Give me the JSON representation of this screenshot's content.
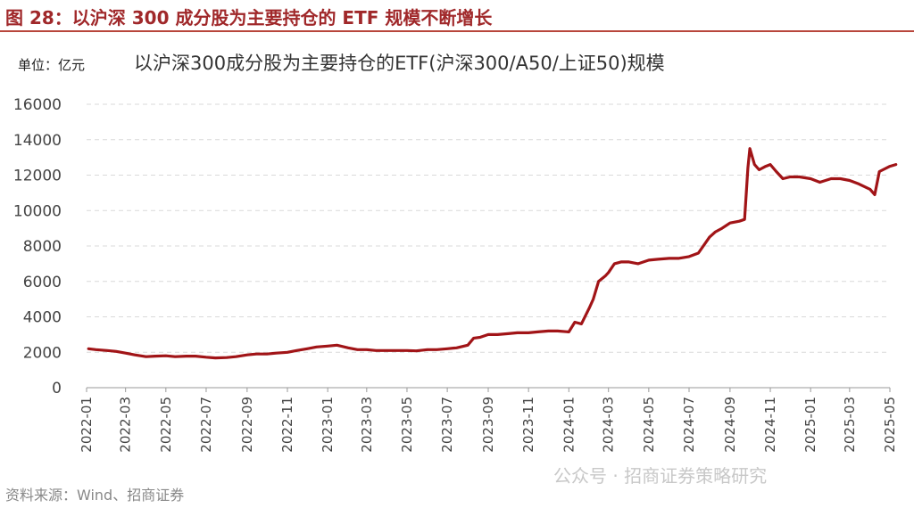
{
  "figure": {
    "title": "图 28：以沪深 300 成分股为主要持仓的 ETF 规模不断增长",
    "unit": "单位：亿元",
    "source": "资料来源：Wind、招商证券",
    "watermark": "公众号 · 招商证券策略研究"
  },
  "chart_data": {
    "type": "line",
    "title": "以沪深300成分股为主要持仓的ETF(沪深300/A50/上证50)规模",
    "xlabel": "",
    "ylabel": "",
    "ylim": [
      0,
      16000
    ],
    "yticks": [
      0,
      2000,
      4000,
      6000,
      8000,
      10000,
      12000,
      14000,
      16000
    ],
    "xticks": [
      "2022-01",
      "2022-03",
      "2022-05",
      "2022-07",
      "2022-09",
      "2022-11",
      "2023-01",
      "2023-03",
      "2023-05",
      "2023-07",
      "2023-09",
      "2023-11",
      "2024-01",
      "2024-03",
      "2024-05",
      "2024-07",
      "2024-09",
      "2024-11",
      "2025-01",
      "2025-03",
      "2025-05"
    ],
    "grid": true,
    "line_color": "#a11417",
    "series": [
      {
        "name": "",
        "x": [
          "2022-01-04",
          "2022-01-15",
          "2022-02-01",
          "2022-02-15",
          "2022-03-01",
          "2022-03-15",
          "2022-04-01",
          "2022-04-15",
          "2022-05-01",
          "2022-05-15",
          "2022-06-01",
          "2022-06-15",
          "2022-07-01",
          "2022-07-15",
          "2022-08-01",
          "2022-08-15",
          "2022-09-01",
          "2022-09-15",
          "2022-10-01",
          "2022-10-15",
          "2022-11-01",
          "2022-11-15",
          "2022-12-01",
          "2022-12-15",
          "2023-01-01",
          "2023-01-15",
          "2023-02-01",
          "2023-02-15",
          "2023-03-01",
          "2023-03-15",
          "2023-04-01",
          "2023-04-15",
          "2023-05-01",
          "2023-05-15",
          "2023-06-01",
          "2023-06-15",
          "2023-07-01",
          "2023-07-15",
          "2023-08-01",
          "2023-08-10",
          "2023-08-20",
          "2023-09-01",
          "2023-09-15",
          "2023-10-01",
          "2023-10-15",
          "2023-11-01",
          "2023-11-15",
          "2023-12-01",
          "2023-12-15",
          "2024-01-01",
          "2024-01-10",
          "2024-01-20",
          "2024-02-01",
          "2024-02-07",
          "2024-02-15",
          "2024-02-25",
          "2024-03-01",
          "2024-03-10",
          "2024-03-20",
          "2024-04-01",
          "2024-04-15",
          "2024-05-01",
          "2024-05-15",
          "2024-06-01",
          "2024-06-15",
          "2024-07-01",
          "2024-07-15",
          "2024-08-01",
          "2024-08-10",
          "2024-08-20",
          "2024-09-01",
          "2024-09-15",
          "2024-09-23",
          "2024-09-28",
          "2024-10-01",
          "2024-10-08",
          "2024-10-15",
          "2024-10-25",
          "2024-11-01",
          "2024-11-10",
          "2024-11-20",
          "2024-12-01",
          "2024-12-15",
          "2025-01-01",
          "2025-01-15",
          "2025-02-01",
          "2025-02-15",
          "2025-03-01",
          "2025-03-15",
          "2025-04-01",
          "2025-04-08",
          "2025-04-15",
          "2025-05-01",
          "2025-05-10"
        ],
        "values": [
          2200,
          2150,
          2100,
          2050,
          1950,
          1850,
          1750,
          1780,
          1800,
          1750,
          1780,
          1780,
          1720,
          1680,
          1700,
          1750,
          1850,
          1900,
          1900,
          1950,
          2000,
          2100,
          2200,
          2300,
          2350,
          2400,
          2250,
          2150,
          2150,
          2100,
          2100,
          2100,
          2100,
          2080,
          2150,
          2150,
          2200,
          2250,
          2400,
          2800,
          2850,
          3000,
          3000,
          3050,
          3100,
          3100,
          3150,
          3200,
          3200,
          3150,
          3700,
          3600,
          4500,
          5000,
          6000,
          6300,
          6500,
          7000,
          7100,
          7100,
          7000,
          7200,
          7250,
          7300,
          7300,
          7400,
          7600,
          8500,
          8800,
          9000,
          9300,
          9400,
          9500,
          12400,
          13500,
          12600,
          12300,
          12500,
          12600,
          12200,
          11800,
          11900,
          11900,
          11800,
          11600,
          11800,
          11800,
          11700,
          11500,
          11200,
          10900,
          12200,
          12500,
          12600
        ]
      }
    ]
  }
}
